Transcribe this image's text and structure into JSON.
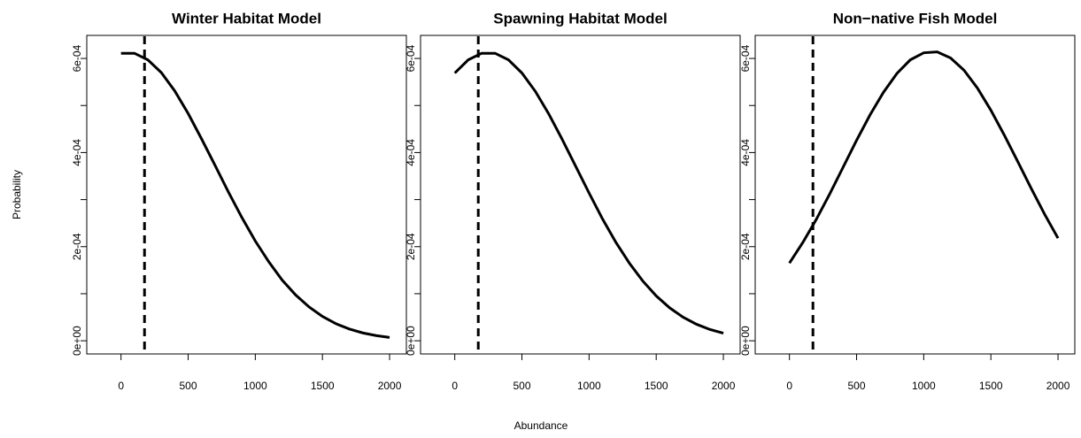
{
  "xlabel": "Abundance",
  "ylabel": "Probability",
  "chart_data": [
    {
      "type": "line",
      "title": "Winter Habitat Model",
      "color": "#000000",
      "vline": 175,
      "x": [
        0,
        100,
        200,
        300,
        400,
        500,
        600,
        700,
        800,
        900,
        1000,
        1100,
        1200,
        1300,
        1400,
        1500,
        1600,
        1700,
        1800,
        1900,
        2000
      ],
      "values": [
        0.000611,
        0.000611,
        0.000597,
        0.00057,
        0.000531,
        0.000483,
        0.000429,
        0.000373,
        0.000316,
        0.000262,
        0.000212,
        0.000168,
        0.000129,
        9.75e-05,
        7.19e-05,
        5.17e-05,
        3.63e-05,
        2.5e-05,
        1.67e-05,
        1.1e-05,
        7e-06
      ],
      "xlim": [
        -255,
        2125
      ],
      "xticks": [
        0,
        500,
        1000,
        1500,
        2000
      ],
      "ylim": [
        -2.8e-05,
        0.000649
      ],
      "yticks": [
        {
          "value": 0,
          "label": "0e+00"
        },
        {
          "value": 0.0002,
          "label": "2e-04"
        },
        {
          "value": 0.0004,
          "label": "4e-04"
        },
        {
          "value": 0.0006,
          "label": "6e-04"
        }
      ],
      "yminorticks": [
        0.0001,
        0.0003,
        0.0005
      ]
    },
    {
      "type": "line",
      "title": "Spawning Habitat Model",
      "color": "#000000",
      "vline": 175,
      "x": [
        0,
        100,
        200,
        300,
        400,
        500,
        600,
        700,
        800,
        900,
        1000,
        1100,
        1200,
        1300,
        1400,
        1500,
        1600,
        1700,
        1800,
        1900,
        2000
      ],
      "values": [
        0.000569,
        0.000597,
        0.000611,
        0.000611,
        0.000597,
        0.000569,
        0.00053,
        0.000482,
        0.000428,
        0.000371,
        0.000314,
        0.000259,
        0.000209,
        0.000165,
        0.000127,
        9.54e-05,
        7e-05,
        5.01e-05,
        3.51e-05,
        2.4e-05,
        1.6e-05
      ],
      "xlim": [
        -255,
        2125
      ],
      "xticks": [
        0,
        500,
        1000,
        1500,
        2000
      ],
      "ylim": [
        -2.8e-05,
        0.000649
      ],
      "yticks": [
        {
          "value": 0,
          "label": "0e+00"
        },
        {
          "value": 0.0002,
          "label": "2e-04"
        },
        {
          "value": 0.0004,
          "label": "4e-04"
        },
        {
          "value": 0.0006,
          "label": "6e-04"
        }
      ],
      "yminorticks": [
        0.0001,
        0.0003,
        0.0005
      ]
    },
    {
      "type": "line",
      "title": "Non−native Fish Model",
      "color": "#000000",
      "vline": 175,
      "x": [
        0,
        100,
        200,
        300,
        400,
        500,
        600,
        700,
        800,
        900,
        1000,
        1100,
        1200,
        1300,
        1400,
        1500,
        1600,
        1700,
        1800,
        1900,
        2000
      ],
      "values": [
        0.000165,
        0.000209,
        0.000258,
        0.000312,
        0.000369,
        0.000426,
        0.00048,
        0.000528,
        0.000568,
        0.000597,
        0.000612,
        0.000614,
        0.000601,
        0.000575,
        0.000537,
        0.00049,
        0.000437,
        0.000381,
        0.000324,
        0.000269,
        0.000218
      ],
      "xlim": [
        -255,
        2125
      ],
      "xticks": [
        0,
        500,
        1000,
        1500,
        2000
      ],
      "ylim": [
        -2.8e-05,
        0.000649
      ],
      "yticks": [
        {
          "value": 0,
          "label": "0e+00"
        },
        {
          "value": 0.0002,
          "label": "2e-04"
        },
        {
          "value": 0.0004,
          "label": "4e-04"
        },
        {
          "value": 0.0006,
          "label": "6e-04"
        }
      ],
      "yminorticks": [
        0.0001,
        0.0003,
        0.0005
      ]
    }
  ]
}
